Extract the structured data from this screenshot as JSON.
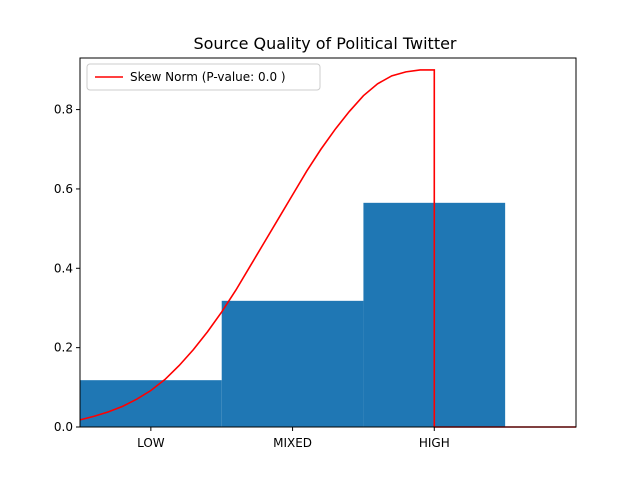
{
  "chart_data": {
    "type": "bar",
    "title": "Source Quality of Political Twitter",
    "xlabel": "",
    "ylabel": "",
    "categories": [
      "LOW",
      "MIXED",
      "HIGH"
    ],
    "values": [
      0.118,
      0.318,
      0.565
    ],
    "bar_color": "#1f77b4",
    "x_extra_range": [
      -0.5,
      3.0
    ],
    "ylim": [
      0,
      0.93
    ],
    "yticks": [
      0.0,
      0.2,
      0.4,
      0.6,
      0.8
    ],
    "ytick_labels": [
      "0.0",
      "0.2",
      "0.4",
      "0.6",
      "0.8"
    ],
    "grid": false,
    "legend": {
      "placement": "top-left",
      "entries": [
        {
          "label": "Skew Norm (P-value: 0.0 )",
          "color": "#ff0000"
        }
      ]
    },
    "fit_curve": {
      "name": "Skew Norm (P-value: 0.0 )",
      "color": "#ff0000",
      "x": [
        -0.5,
        -0.4,
        -0.3,
        -0.2,
        -0.1,
        0.0,
        0.1,
        0.2,
        0.3,
        0.4,
        0.5,
        0.6,
        0.7,
        0.8,
        0.9,
        1.0,
        1.1,
        1.2,
        1.3,
        1.4,
        1.5,
        1.6,
        1.7,
        1.8,
        1.9,
        2.0,
        2.0,
        2.0,
        3.0
      ],
      "y": [
        0.018,
        0.027,
        0.038,
        0.052,
        0.07,
        0.092,
        0.12,
        0.155,
        0.195,
        0.24,
        0.29,
        0.345,
        0.405,
        0.465,
        0.525,
        0.585,
        0.645,
        0.7,
        0.75,
        0.795,
        0.835,
        0.865,
        0.885,
        0.895,
        0.9,
        0.9,
        0.0,
        0.0,
        0.0
      ]
    }
  }
}
